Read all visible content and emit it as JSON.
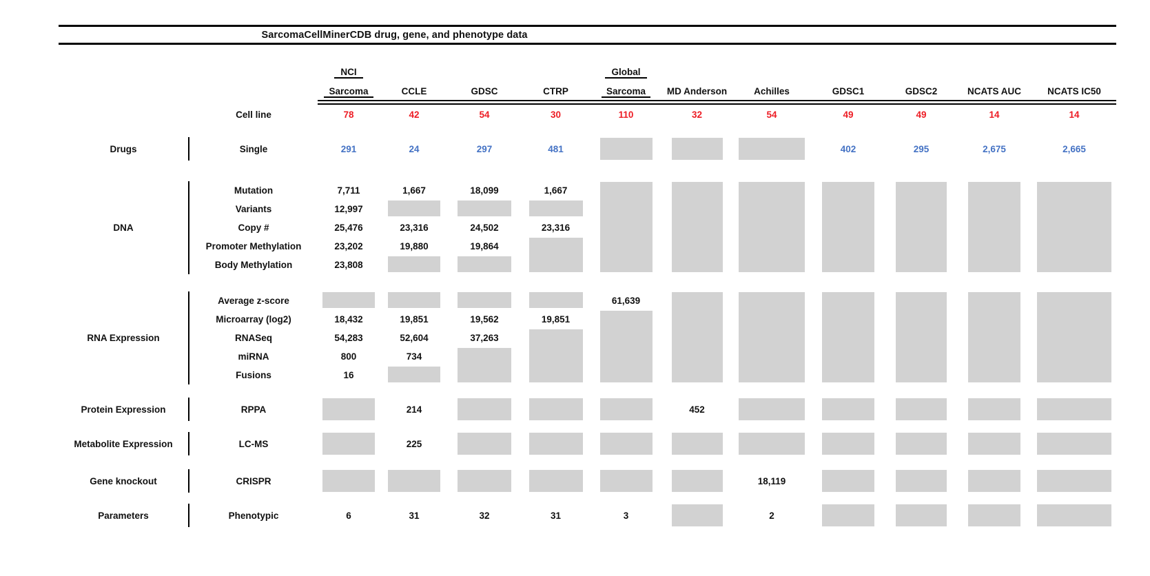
{
  "colors": {
    "cell_line_red": "#ed1c24",
    "drug_value_blue": "#4472c4",
    "missing_box_gray": "#d2d2d2",
    "text_black": "#111111"
  },
  "chart_data": {
    "type": "table",
    "title": "SarcomaCellMinerCDB drug, gene, and phenotype data",
    "cell_line_label": "Cell line",
    "columns": [
      {
        "top": "NCI",
        "label": "Sarcoma",
        "cell_lines": "78"
      },
      {
        "top": "",
        "label": "CCLE",
        "cell_lines": "42"
      },
      {
        "top": "",
        "label": "GDSC",
        "cell_lines": "54"
      },
      {
        "top": "",
        "label": "CTRP",
        "cell_lines": "30"
      },
      {
        "top": "Global",
        "label": "Sarcoma",
        "cell_lines": "110"
      },
      {
        "top": "",
        "label": "MD Anderson",
        "cell_lines": "32"
      },
      {
        "top": "",
        "label": "Achilles",
        "cell_lines": "54"
      },
      {
        "top": "",
        "label": "GDSC1",
        "cell_lines": "49"
      },
      {
        "top": "",
        "label": "GDSC2",
        "cell_lines": "49"
      },
      {
        "top": "",
        "label": "NCATS AUC",
        "cell_lines": "14"
      },
      {
        "top": "",
        "label": "NCATS IC50",
        "cell_lines": "14"
      }
    ],
    "blocks": [
      {
        "category": "Drugs",
        "rows": [
          {
            "label": "Single",
            "cells": [
              {
                "v": "291",
                "c": "blue"
              },
              {
                "v": "24",
                "c": "blue"
              },
              {
                "v": "297",
                "c": "blue"
              },
              {
                "v": "481",
                "c": "blue"
              },
              {
                "na": 1
              },
              {
                "na": 1
              },
              {
                "na": 1
              },
              {
                "v": "402",
                "c": "blue"
              },
              {
                "v": "295",
                "c": "blue"
              },
              {
                "v": "2,675",
                "c": "blue"
              },
              {
                "v": "2,665",
                "c": "blue"
              }
            ]
          }
        ]
      },
      {
        "category": "DNA",
        "rows": [
          {
            "label": "Mutation",
            "cells": [
              {
                "v": "7,711"
              },
              {
                "v": "1,667"
              },
              {
                "v": "18,099"
              },
              {
                "v": "1,667"
              },
              {
                "na": 5
              },
              {
                "na": 5
              },
              {
                "na": 5
              },
              {
                "na": 5
              },
              {
                "na": 5
              },
              {
                "na": 5
              },
              {
                "na": 5
              }
            ]
          },
          {
            "label": "Variants",
            "cells": [
              {
                "v": "12,997"
              },
              {
                "na": 1
              },
              {
                "na": 1
              },
              {
                "na": 1
              },
              null,
              null,
              null,
              null,
              null,
              null,
              null
            ]
          },
          {
            "label": "Copy #",
            "cells": [
              {
                "v": "25,476"
              },
              {
                "v": "23,316"
              },
              {
                "v": "24,502"
              },
              {
                "v": "23,316"
              },
              null,
              null,
              null,
              null,
              null,
              null,
              null
            ]
          },
          {
            "label": "Promoter Methylation",
            "cells": [
              {
                "v": "23,202"
              },
              {
                "v": "19,880"
              },
              {
                "v": "19,864"
              },
              {
                "na": 2
              },
              null,
              null,
              null,
              null,
              null,
              null,
              null
            ]
          },
          {
            "label": "Body Methylation",
            "cells": [
              {
                "v": "23,808"
              },
              {
                "na": 1
              },
              {
                "na": 1
              },
              null,
              null,
              null,
              null,
              null,
              null,
              null,
              null
            ]
          }
        ]
      },
      {
        "category": "RNA Expression",
        "rows": [
          {
            "label": "Average z-score",
            "cells": [
              {
                "na": 1
              },
              {
                "na": 1
              },
              {
                "na": 1
              },
              {
                "na": 1
              },
              {
                "v": "61,639"
              },
              {
                "na": 5
              },
              {
                "na": 5
              },
              {
                "na": 5
              },
              {
                "na": 5
              },
              {
                "na": 5
              },
              {
                "na": 5
              }
            ]
          },
          {
            "label": "Microarray (log2)",
            "cells": [
              {
                "v": "18,432"
              },
              {
                "v": "19,851"
              },
              {
                "v": "19,562"
              },
              {
                "v": "19,851"
              },
              {
                "na": 4
              },
              null,
              null,
              null,
              null,
              null,
              null
            ]
          },
          {
            "label": "RNASeq",
            "cells": [
              {
                "v": "54,283"
              },
              {
                "v": "52,604"
              },
              {
                "v": "37,263"
              },
              {
                "na": 3
              },
              null,
              null,
              null,
              null,
              null,
              null,
              null
            ]
          },
          {
            "label": "miRNA",
            "cells": [
              {
                "v": "800"
              },
              {
                "v": "734"
              },
              {
                "na": 2
              },
              null,
              null,
              null,
              null,
              null,
              null,
              null,
              null
            ]
          },
          {
            "label": "Fusions",
            "cells": [
              {
                "v": "16"
              },
              {
                "na": 1
              },
              null,
              null,
              null,
              null,
              null,
              null,
              null,
              null,
              null
            ]
          }
        ]
      },
      {
        "category": "Protein Expression",
        "rows": [
          {
            "label": "RPPA",
            "cells": [
              {
                "na": 1
              },
              {
                "v": "214"
              },
              {
                "na": 1
              },
              {
                "na": 1
              },
              {
                "na": 1
              },
              {
                "v": "452"
              },
              {
                "na": 1
              },
              {
                "na": 1
              },
              {
                "na": 1
              },
              {
                "na": 1
              },
              {
                "na": 1
              }
            ]
          }
        ]
      },
      {
        "category": "Metabolite Expression",
        "rows": [
          {
            "label": "LC-MS",
            "cells": [
              {
                "na": 1
              },
              {
                "v": "225"
              },
              {
                "na": 1
              },
              {
                "na": 1
              },
              {
                "na": 1
              },
              {
                "na": 1
              },
              {
                "na": 1
              },
              {
                "na": 1
              },
              {
                "na": 1
              },
              {
                "na": 1
              },
              {
                "na": 1
              }
            ]
          }
        ]
      },
      {
        "category": "Gene knockout",
        "rows": [
          {
            "label": "CRISPR",
            "cells": [
              {
                "na": 1
              },
              {
                "na": 1
              },
              {
                "na": 1
              },
              {
                "na": 1
              },
              {
                "na": 1
              },
              {
                "na": 1
              },
              {
                "v": "18,119"
              },
              {
                "na": 1
              },
              {
                "na": 1
              },
              {
                "na": 1
              },
              {
                "na": 1
              }
            ]
          }
        ]
      },
      {
        "category": "Parameters",
        "rows": [
          {
            "label": "Phenotypic",
            "cells": [
              {
                "v": "6"
              },
              {
                "v": "31"
              },
              {
                "v": "32"
              },
              {
                "v": "31"
              },
              {
                "v": "3"
              },
              {
                "na": 1
              },
              {
                "v": "2"
              },
              {
                "na": 1
              },
              {
                "na": 1
              },
              {
                "na": 1
              },
              {
                "na": 1
              }
            ]
          }
        ]
      }
    ]
  }
}
